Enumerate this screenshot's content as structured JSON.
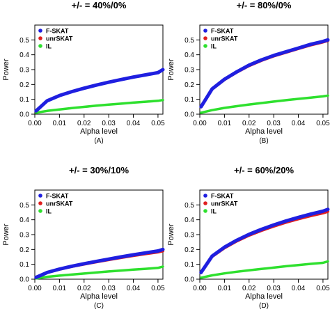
{
  "chart_data": [
    {
      "type": "line",
      "title": "+/- = 40%/0%",
      "panel_label": "(A)",
      "xlabel": "Alpha level",
      "ylabel": "Power",
      "xlim": [
        0,
        0.052
      ],
      "ylim": [
        0,
        0.6
      ],
      "x_ticks": [
        "0.00",
        "0.01",
        "0.02",
        "0.03",
        "0.04",
        "0.05"
      ],
      "y_ticks": [
        "0.0",
        "0.1",
        "0.2",
        "0.3",
        "0.4",
        "0.5"
      ],
      "legend": "top-left",
      "x": [
        0.0005,
        0.005,
        0.01,
        0.015,
        0.02,
        0.025,
        0.03,
        0.035,
        0.04,
        0.045,
        0.05,
        0.052
      ],
      "series": [
        {
          "name": "F-SKAT",
          "color": "#1f1fe0",
          "values": [
            0.022,
            0.09,
            0.125,
            0.152,
            0.175,
            0.196,
            0.215,
            0.233,
            0.25,
            0.265,
            0.28,
            0.3
          ]
        },
        {
          "name": "unrSKAT",
          "color": "#e01f1f",
          "values": [
            0.022,
            0.09,
            0.125,
            0.152,
            0.175,
            0.196,
            0.215,
            0.233,
            0.25,
            0.265,
            0.28,
            0.3
          ]
        },
        {
          "name": "IL",
          "color": "#2ee02e",
          "values": [
            0.01,
            0.022,
            0.032,
            0.041,
            0.049,
            0.057,
            0.064,
            0.071,
            0.078,
            0.084,
            0.09,
            0.095
          ]
        }
      ]
    },
    {
      "type": "line",
      "title": "+/- = 80%/0%",
      "panel_label": "(B)",
      "xlabel": "Alpha level",
      "ylabel": "Power",
      "xlim": [
        0,
        0.052
      ],
      "ylim": [
        0,
        0.6
      ],
      "x_ticks": [
        "0.00",
        "0.01",
        "0.02",
        "0.03",
        "0.04",
        "0.05"
      ],
      "y_ticks": [
        "0.0",
        "0.1",
        "0.2",
        "0.3",
        "0.4",
        "0.5"
      ],
      "legend": "top-left",
      "x": [
        0.0005,
        0.005,
        0.01,
        0.015,
        0.02,
        0.025,
        0.03,
        0.035,
        0.04,
        0.045,
        0.05,
        0.052
      ],
      "series": [
        {
          "name": "F-SKAT",
          "color": "#1f1fe0",
          "values": [
            0.05,
            0.17,
            0.235,
            0.285,
            0.33,
            0.365,
            0.395,
            0.42,
            0.445,
            0.47,
            0.49,
            0.5
          ]
        },
        {
          "name": "unrSKAT",
          "color": "#e01f1f",
          "values": [
            0.05,
            0.168,
            0.232,
            0.282,
            0.326,
            0.361,
            0.391,
            0.416,
            0.441,
            0.465,
            0.485,
            0.495
          ]
        },
        {
          "name": "IL",
          "color": "#2ee02e",
          "values": [
            0.01,
            0.027,
            0.042,
            0.054,
            0.065,
            0.075,
            0.085,
            0.094,
            0.103,
            0.111,
            0.12,
            0.125
          ]
        }
      ]
    },
    {
      "type": "line",
      "title": "+/- = 30%/10%",
      "panel_label": "(C)",
      "xlabel": "Alpha level",
      "ylabel": "Power",
      "xlim": [
        0,
        0.052
      ],
      "ylim": [
        0,
        0.6
      ],
      "x_ticks": [
        "0.00",
        "0.01",
        "0.02",
        "0.03",
        "0.04",
        "0.05"
      ],
      "y_ticks": [
        "0.0",
        "0.1",
        "0.2",
        "0.3",
        "0.4",
        "0.5"
      ],
      "legend": "top-left",
      "x": [
        0.0005,
        0.005,
        0.01,
        0.015,
        0.02,
        0.025,
        0.03,
        0.035,
        0.04,
        0.045,
        0.05,
        0.052
      ],
      "series": [
        {
          "name": "F-SKAT",
          "color": "#1f1fe0",
          "values": [
            0.012,
            0.045,
            0.068,
            0.087,
            0.104,
            0.12,
            0.135,
            0.15,
            0.164,
            0.177,
            0.19,
            0.2
          ]
        },
        {
          "name": "unrSKAT",
          "color": "#e01f1f",
          "values": [
            0.012,
            0.044,
            0.066,
            0.085,
            0.101,
            0.116,
            0.131,
            0.145,
            0.158,
            0.17,
            0.182,
            0.19
          ]
        },
        {
          "name": "IL",
          "color": "#2ee02e",
          "values": [
            0.005,
            0.016,
            0.024,
            0.031,
            0.038,
            0.045,
            0.052,
            0.058,
            0.064,
            0.07,
            0.076,
            0.085
          ]
        }
      ]
    },
    {
      "type": "line",
      "title": "+/- = 60%/20%",
      "panel_label": "(D)",
      "xlabel": "Alpha level",
      "ylabel": "Power",
      "xlim": [
        0,
        0.052
      ],
      "ylim": [
        0,
        0.6
      ],
      "x_ticks": [
        "0.00",
        "0.01",
        "0.02",
        "0.03",
        "0.04",
        "0.05"
      ],
      "y_ticks": [
        "0.0",
        "0.1",
        "0.2",
        "0.3",
        "0.4",
        "0.5"
      ],
      "legend": "top-left",
      "x": [
        0.0005,
        0.005,
        0.01,
        0.015,
        0.02,
        0.025,
        0.03,
        0.035,
        0.04,
        0.045,
        0.05,
        0.052
      ],
      "series": [
        {
          "name": "F-SKAT",
          "color": "#1f1fe0",
          "values": [
            0.045,
            0.155,
            0.215,
            0.262,
            0.302,
            0.335,
            0.365,
            0.392,
            0.416,
            0.438,
            0.458,
            0.47
          ]
        },
        {
          "name": "unrSKAT",
          "color": "#e01f1f",
          "values": [
            0.044,
            0.152,
            0.21,
            0.256,
            0.295,
            0.327,
            0.356,
            0.382,
            0.405,
            0.426,
            0.445,
            0.455
          ]
        },
        {
          "name": "IL",
          "color": "#2ee02e",
          "values": [
            0.01,
            0.026,
            0.039,
            0.05,
            0.06,
            0.069,
            0.078,
            0.087,
            0.095,
            0.103,
            0.11,
            0.12
          ]
        }
      ]
    }
  ]
}
